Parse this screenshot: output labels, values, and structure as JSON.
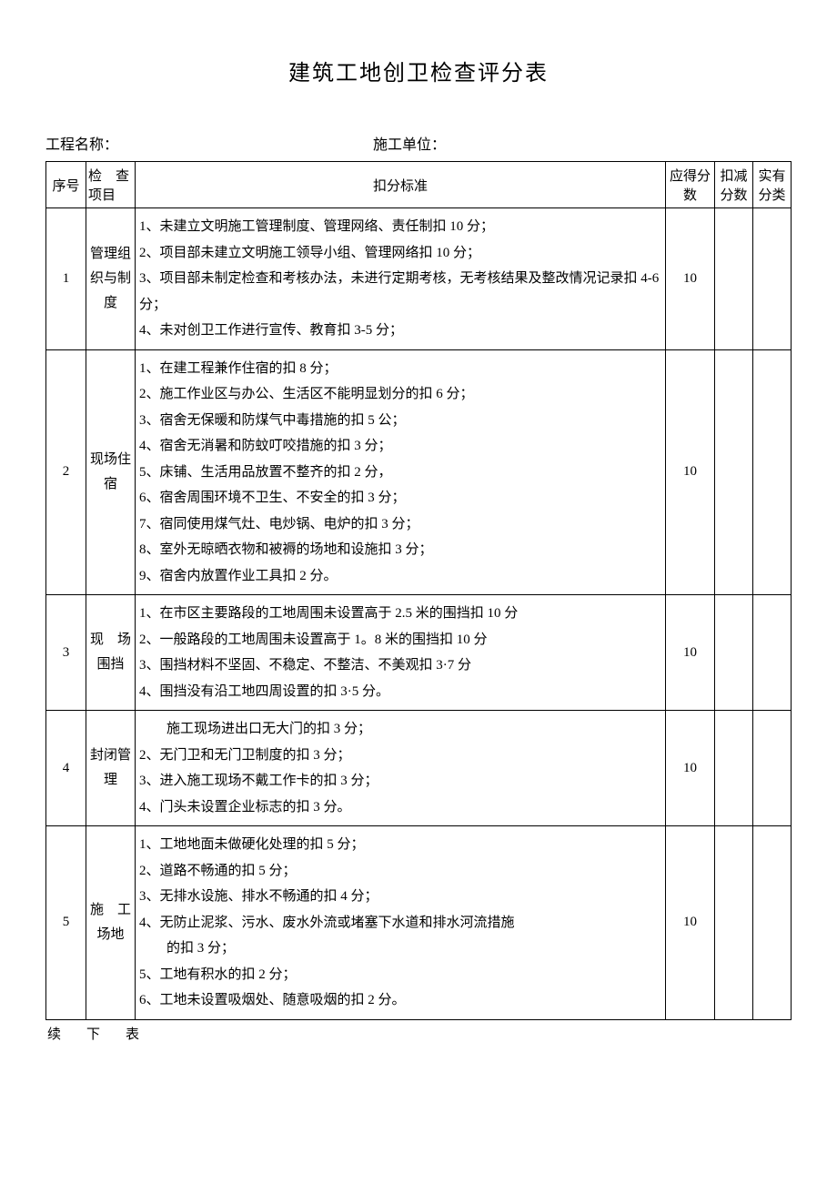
{
  "doc": {
    "title": "建筑工地创卫检查评分表",
    "project_label": "工程名称：",
    "unit_label": "施工单位：",
    "footer": "续下表"
  },
  "table": {
    "headers": {
      "seq": "序号",
      "item": "检　查项目",
      "criteria": "扣分标准",
      "score": "应得分数",
      "deduct": "扣减分数",
      "actual": "实有分类"
    },
    "rows": [
      {
        "seq": "1",
        "item": "管理组织与制度",
        "criteria": "1、未建立文明施工管理制度、管理网络、责任制扣 10 分；\n2、项目部未建立文明施工领导小组、管理网络扣 10 分；\n3、项目部未制定检查和考核办法，未进行定期考核，无考核结果及整改情况记录扣 4-6 分；\n4、未对创卫工作进行宣传、教育扣 3-5 分；",
        "score": "10",
        "deduct": "",
        "actual": ""
      },
      {
        "seq": "2",
        "item": "现场住宿",
        "criteria": "1、在建工程兼作住宿的扣 8 分；\n2、施工作业区与办公、生活区不能明显划分的扣 6 分；\n3、宿舍无保暖和防煤气中毒措施的扣 5 公；\n4、宿舍无消暑和防蚊叮咬措施的扣 3 分；\n5、床铺、生活用品放置不整齐的扣 2 分，\n6、宿舍周围环境不卫生、不安全的扣 3 分；\n7、宿同使用煤气灶、电炒锅、电炉的扣 3 分；\n8、室外无晾晒衣物和被褥的场地和设施扣 3 分；\n9、宿舍内放置作业工具扣 2 分。",
        "score": "10",
        "deduct": "",
        "actual": ""
      },
      {
        "seq": "3",
        "item": "现　场围挡",
        "criteria": "1、在市区主要路段的工地周围未设置高于 2.5 米的围挡扣 10 分\n2、一般路段的工地周围未设置高于 1。8 米的围挡扣 10 分\n3、围挡材料不坚固、不稳定、不整洁、不美观扣 3·7 分\n4、围挡没有沿工地四周设置的扣 3·5 分。",
        "score": "10",
        "deduct": "",
        "actual": ""
      },
      {
        "seq": "4",
        "item": "封闭管理",
        "criteria": "　　施工现场进出口无大门的扣 3 分；\n2、无门卫和无门卫制度的扣 3 分；\n3、进入施工现场不戴工作卡的扣 3 分；\n4、门头未设置企业标志的扣 3 分。",
        "score": "10",
        "deduct": "",
        "actual": ""
      },
      {
        "seq": "5",
        "item": "施　工场地",
        "criteria": "1、工地地面未做硬化处理的扣 5 分；\n2、道路不畅通的扣 5 分；\n3、无排水设施、排水不畅通的扣 4 分；\n4、无防止泥浆、污水、废水外流或堵塞下水道和排水河流措施\n　　的扣 3 分；\n5、工地有积水的扣 2 分；\n6、工地未设置吸烟处、随意吸烟的扣 2 分。",
        "score": "10",
        "deduct": "",
        "actual": ""
      }
    ]
  }
}
